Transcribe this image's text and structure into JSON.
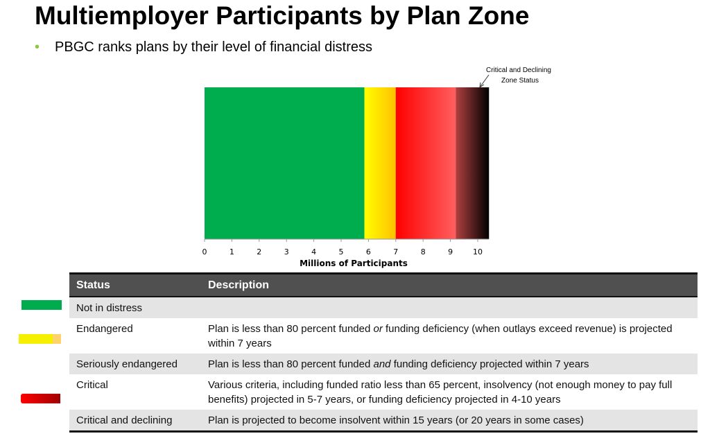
{
  "title": "Multiemployer Participants by Plan Zone",
  "bullet": "PBGC ranks plans by their level of financial distress",
  "chart_data": {
    "type": "bar",
    "orientation": "horizontal-stacked",
    "xlabel": "Millions of Participants",
    "xlim": [
      0,
      10.4
    ],
    "xticks": [
      "0",
      "1",
      "2",
      "3",
      "4",
      "5",
      "6",
      "7",
      "8",
      "9",
      "10"
    ],
    "annotation": "Critical and Declining Zone Status",
    "segments": [
      {
        "zone": "Not in distress",
        "start": 0,
        "end": 5.85,
        "colors": [
          "#00ad4e",
          "#00ad4e"
        ]
      },
      {
        "zone": "Endangered / Seriously endangered",
        "start": 5.85,
        "end": 7.0,
        "colors": [
          "#ffff00",
          "#ffc000"
        ]
      },
      {
        "zone": "Critical",
        "start": 7.0,
        "end": 9.2,
        "colors": [
          "#ff0000",
          "#ff6060"
        ]
      },
      {
        "zone": "Critical and declining",
        "start": 9.2,
        "end": 10.4,
        "colors": [
          "#b04040",
          "#000000"
        ]
      }
    ]
  },
  "table": {
    "headers": [
      "Status",
      "Description"
    ],
    "rows": [
      {
        "status": "Not in distress",
        "desc": "",
        "swatch": "green"
      },
      {
        "status": "Endangered",
        "desc_html": "Plan is less than 80 percent funded <i>or</i> funding deficiency (when outlays exceed revenue) is projected within 7 years",
        "swatch": "yellow"
      },
      {
        "status": "Seriously endangered",
        "desc_html": "Plan is less than 80 percent funded <i>and</i> funding deficiency projected within 7 years"
      },
      {
        "status": "Critical",
        "desc": "Various criteria, including funded ratio less than 65 percent, insolvency (not enough money to pay full benefits) projected in 5-7 years, or funding deficiency projected in 4-10 years",
        "swatch": "red"
      },
      {
        "status": "Critical and declining",
        "desc": "Plan is projected to become insolvent within 15 years (or 20 years in some cases)"
      }
    ]
  }
}
